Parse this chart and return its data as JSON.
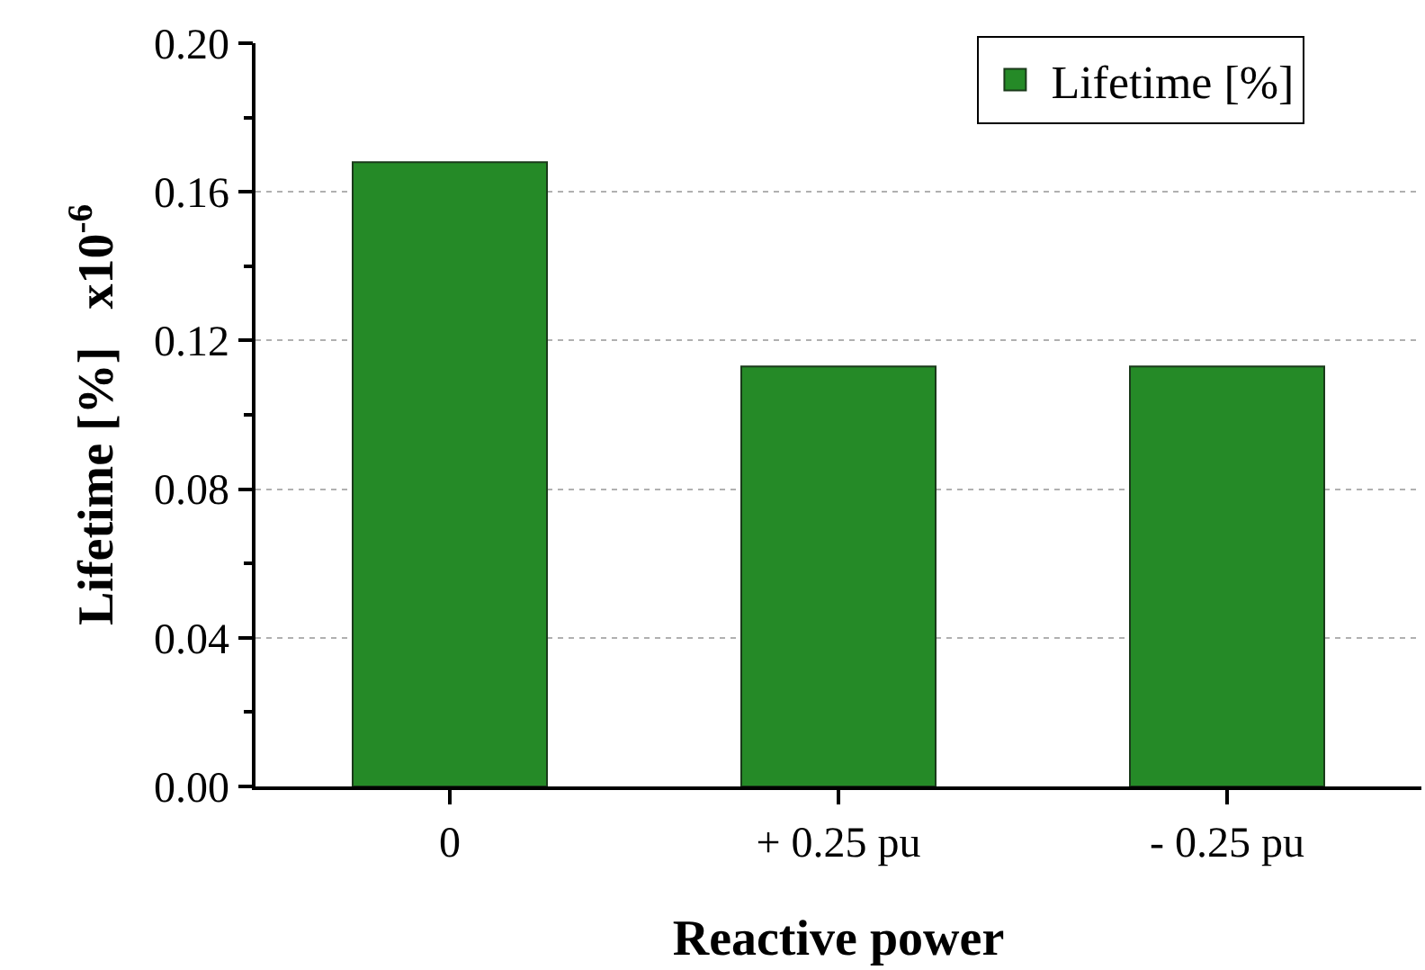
{
  "chart_data": {
    "type": "bar",
    "xlabel": "Reactive power",
    "ylabel": "Lifetime [%]   x10$^{-6}$",
    "categories": [
      "0",
      "+ 0.25 pu",
      "- 0.25 pu"
    ],
    "series": [
      {
        "name": "Lifetime [%]",
        "color": "#258a27",
        "values": [
          0.168,
          0.113,
          0.113
        ]
      }
    ],
    "ylim": [
      0,
      0.2
    ],
    "yticks": [
      {
        "value": 0,
        "label": "0.00"
      },
      {
        "value": 0.02,
        "label": null
      },
      0.04,
      {
        "value": 0.06,
        "label": null
      },
      0.08,
      {
        "value": 0.1,
        "label": null
      },
      0.12,
      {
        "value": 0.14,
        "label": null
      },
      0.16,
      {
        "value": 0.18,
        "label": null
      },
      {
        "value": 0.2,
        "label": "0.20"
      }
    ],
    "grid": "y",
    "legend": "top right"
  }
}
